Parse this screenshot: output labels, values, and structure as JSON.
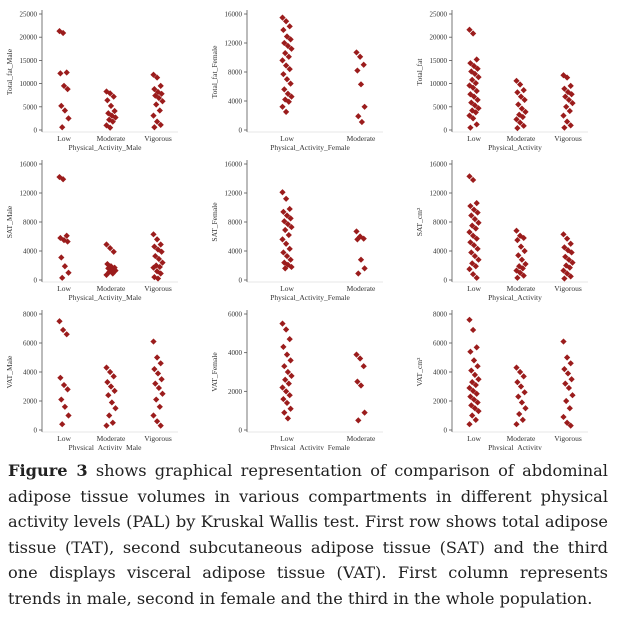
{
  "colors": {
    "marker": "#9b1c1c",
    "axis": "#555555"
  },
  "chart_data": [
    {
      "type": "scatter",
      "ylabel": "Total_fat_Male",
      "xlabel": "Physical_Activity_Male",
      "categories": [
        "Low",
        "Moderate",
        "Vigorous"
      ],
      "yticks": [
        0,
        5000,
        10000,
        15000,
        20000,
        25000
      ],
      "ylim": [
        0,
        25000
      ],
      "series": [
        [
          21300,
          20900,
          12400,
          12200,
          9500,
          8800,
          5200,
          4200,
          2500,
          600
        ],
        [
          8300,
          7900,
          7200,
          6400,
          5200,
          4100,
          3600,
          3100,
          2700,
          2200,
          1800,
          1000,
          500
        ],
        [
          11900,
          11300,
          9500,
          8800,
          8200,
          7800,
          7400,
          6900,
          6200,
          5500,
          4200,
          3100,
          1800,
          1100,
          600
        ]
      ]
    },
    {
      "type": "scatter",
      "ylabel": "Total_fat_Female",
      "xlabel": "Physical_Activity_Female",
      "categories": [
        "Low",
        "Moderate"
      ],
      "yticks": [
        0,
        4000,
        8000,
        12000,
        16000
      ],
      "ylim": [
        0,
        16000
      ],
      "series": [
        [
          15500,
          15000,
          14300,
          13800,
          12900,
          12500,
          12000,
          11600,
          11200,
          10600,
          10100,
          9600,
          8900,
          8400,
          7700,
          7000,
          6400,
          5600,
          5000,
          4600,
          4200,
          3900,
          3200,
          2500
        ],
        [
          10700,
          10100,
          9000,
          8200,
          6300,
          3200,
          1900,
          1100
        ]
      ]
    },
    {
      "type": "scatter",
      "ylabel": "Total_fat",
      "xlabel": "Physical_Activity",
      "categories": [
        "Low",
        "Moderate",
        "Vigorous"
      ],
      "yticks": [
        0,
        5000,
        10000,
        15000,
        20000,
        25000
      ],
      "ylim": [
        0,
        25000
      ],
      "series": [
        [
          21600,
          20800,
          15200,
          14400,
          13800,
          13200,
          12600,
          12100,
          11400,
          10800,
          10100,
          9600,
          9100,
          8400,
          7700,
          7200,
          6500,
          5900,
          5300,
          4700,
          4200,
          3800,
          3100,
          2500,
          1200,
          500
        ],
        [
          10600,
          9800,
          8600,
          8100,
          7200,
          6500,
          5500,
          4600,
          3900,
          3300,
          2800,
          2300,
          1600,
          900,
          400
        ],
        [
          11800,
          11300,
          9500,
          8900,
          8200,
          7700,
          7200,
          6500,
          5800,
          5000,
          4100,
          3100,
          1800,
          1000,
          500
        ]
      ]
    },
    {
      "type": "scatter",
      "ylabel": "SAT_Male",
      "xlabel": "Physical_Activity_Male",
      "categories": [
        "Low",
        "Moderate",
        "Vigorous"
      ],
      "yticks": [
        0,
        4000,
        8000,
        12000,
        16000
      ],
      "ylim": [
        0,
        16000
      ],
      "series": [
        [
          14200,
          13900,
          6100,
          5800,
          5500,
          5300,
          3100,
          1900,
          1000,
          300
        ],
        [
          4900,
          4400,
          3900,
          2200,
          1900,
          1700,
          1600,
          1400,
          1300,
          1100,
          900,
          700
        ],
        [
          6300,
          5600,
          4900,
          4600,
          4200,
          3900,
          3300,
          2900,
          2400,
          2000,
          1800,
          1700,
          1200,
          900,
          400,
          200
        ]
      ]
    },
    {
      "type": "scatter",
      "ylabel": "SAT_Female",
      "xlabel": "Physical_Activity_Female",
      "categories": [
        "Low",
        "Moderate"
      ],
      "yticks": [
        0,
        4000,
        8000,
        12000,
        16000
      ],
      "ylim": [
        0,
        16000
      ],
      "series": [
        [
          12100,
          11200,
          9800,
          9400,
          8900,
          8500,
          8100,
          7700,
          7300,
          6900,
          6200,
          5600,
          5000,
          4300,
          3800,
          3300,
          2800,
          2400,
          2100,
          1800,
          1600
        ],
        [
          6700,
          6000,
          5700,
          5600,
          2800,
          1600,
          900
        ]
      ]
    },
    {
      "type": "scatter",
      "ylabel": "SAT_cm²",
      "xlabel": "Physical_Activity",
      "categories": [
        "Low",
        "Moderate",
        "Vigorous"
      ],
      "yticks": [
        0,
        4000,
        8000,
        12000,
        16000
      ],
      "ylim": [
        0,
        16000
      ],
      "series": [
        [
          14300,
          13800,
          10600,
          10200,
          9700,
          9300,
          8900,
          8400,
          7900,
          7500,
          7100,
          6600,
          6100,
          5700,
          5200,
          4800,
          4300,
          3800,
          3300,
          2800,
          2300,
          1900,
          1500,
          800,
          300
        ],
        [
          6800,
          6100,
          5800,
          5500,
          4600,
          4000,
          3400,
          2800,
          2200,
          1900,
          1600,
          1300,
          1000,
          600,
          300
        ],
        [
          6300,
          5700,
          5000,
          4500,
          4100,
          3800,
          3200,
          2800,
          2400,
          2000,
          1700,
          1300,
          900,
          500,
          200
        ]
      ]
    },
    {
      "type": "scatter",
      "ylabel": "VAT_Male",
      "xlabel": "Physical_Activity_Male",
      "categories": [
        "Low",
        "Moderate",
        "Vigorous"
      ],
      "yticks": [
        0,
        2000,
        4000,
        6000,
        8000
      ],
      "ylim": [
        0,
        8000
      ],
      "series": [
        [
          7500,
          6900,
          6600,
          3600,
          3100,
          2800,
          2100,
          1600,
          1000,
          400
        ],
        [
          4300,
          4000,
          3700,
          3300,
          3000,
          2700,
          2400,
          1900,
          1500,
          1000,
          500,
          300
        ],
        [
          6100,
          5000,
          4600,
          4200,
          3900,
          3500,
          3200,
          2900,
          2500,
          2100,
          1600,
          1000,
          600,
          300
        ]
      ]
    },
    {
      "type": "scatter",
      "ylabel": "VAT_Female",
      "xlabel": "Physical_Activity_Female",
      "categories": [
        "Low",
        "Moderate"
      ],
      "yticks": [
        0,
        2000,
        4000,
        6000
      ],
      "ylim": [
        0,
        6000
      ],
      "series": [
        [
          5500,
          5200,
          4700,
          4300,
          3900,
          3600,
          3300,
          3000,
          2800,
          2600,
          2400,
          2200,
          2000,
          1800,
          1600,
          1400,
          1100,
          900,
          600
        ],
        [
          3900,
          3700,
          3300,
          2500,
          2300,
          900,
          500
        ]
      ]
    },
    {
      "type": "scatter",
      "ylabel": "VAT_cm²",
      "xlabel": "Physical_Activity",
      "categories": [
        "Low",
        "Moderate",
        "Vigorous"
      ],
      "yticks": [
        0,
        2000,
        4000,
        6000,
        8000
      ],
      "ylim": [
        0,
        8000
      ],
      "series": [
        [
          7600,
          6900,
          5700,
          5400,
          4800,
          4400,
          4100,
          3800,
          3500,
          3300,
          3100,
          2900,
          2700,
          2500,
          2300,
          2100,
          1900,
          1700,
          1500,
          1300,
          1000,
          700,
          400
        ],
        [
          4300,
          4000,
          3700,
          3300,
          3000,
          2600,
          2300,
          1900,
          1500,
          1100,
          700,
          400
        ],
        [
          6100,
          5000,
          4600,
          4200,
          3900,
          3500,
          3200,
          2900,
          2400,
          2000,
          1500,
          900,
          500,
          300
        ]
      ]
    }
  ],
  "caption": {
    "label": "Figure 3",
    "text": " shows graphical representation of comparison of abdominal adipose tissue volumes in various compartments in different physical activity levels (PAL) by Kruskal Wallis test. First row shows total adipose tissue (TAT), second subcutaneous adipose tissue (SAT) and the third one displays visceral adipose tissue (VAT). First column represents trends in male, second in female and the third in the whole population."
  }
}
